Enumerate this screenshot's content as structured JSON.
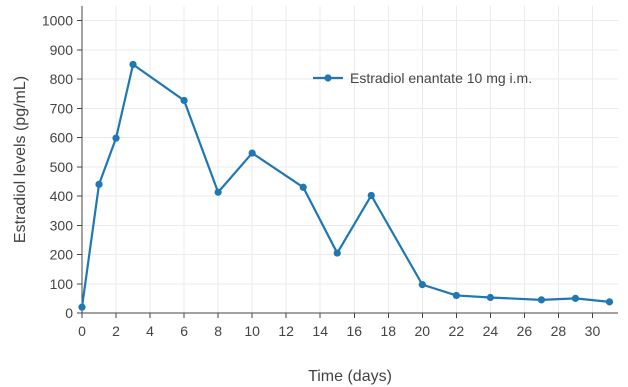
{
  "chart_data": {
    "type": "line",
    "title": "",
    "xlabel": "Time (days)",
    "ylabel": "Estradiol levels (pg/mL)",
    "xlim": [
      0,
      31.5
    ],
    "ylim": [
      0,
      1050
    ],
    "x_ticks": [
      0,
      2,
      4,
      6,
      8,
      10,
      12,
      14,
      16,
      18,
      20,
      22,
      24,
      26,
      28,
      30
    ],
    "y_ticks": [
      0,
      100,
      200,
      300,
      400,
      500,
      600,
      700,
      800,
      900,
      1000
    ],
    "grid": true,
    "legend_position": "top-right",
    "series": [
      {
        "name": "Estradiol enantate 10 mg i.m.",
        "color": "#1f77b4",
        "x": [
          0,
          1,
          2,
          3,
          6,
          8,
          10,
          13,
          15,
          17,
          20,
          22,
          24,
          27,
          29,
          31
        ],
        "y": [
          20,
          440,
          598,
          850,
          727,
          413,
          547,
          430,
          205,
          402,
          97,
          60,
          53,
          45,
          50,
          38
        ]
      }
    ]
  }
}
